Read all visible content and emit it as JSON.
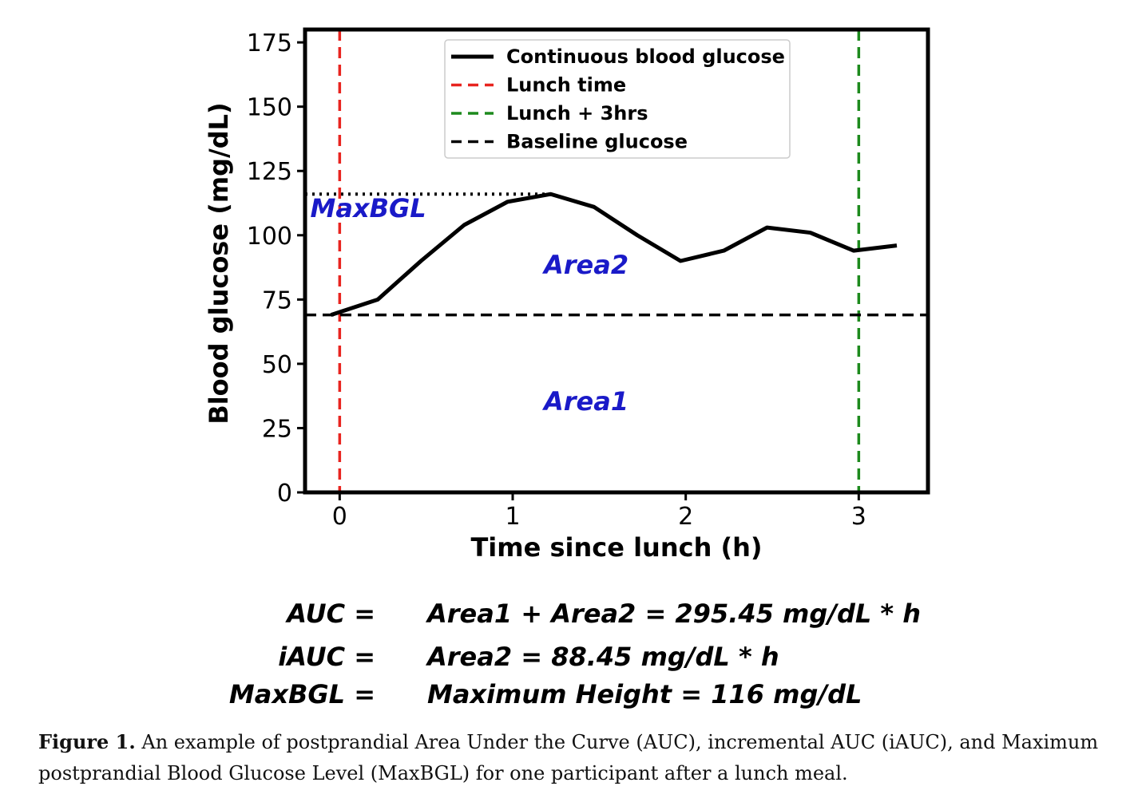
{
  "chart_data": {
    "type": "line",
    "xlabel": "Time since lunch (h)",
    "ylabel": "Blood glucose (mg/dL)",
    "xlim": [
      -0.2,
      3.4
    ],
    "ylim": [
      0,
      180
    ],
    "xticks": [
      "0",
      "1",
      "2",
      "3"
    ],
    "yticks": [
      "0",
      "25",
      "50",
      "75",
      "100",
      "125",
      "150",
      "175"
    ],
    "grid": false,
    "legend_position": "top-center",
    "series": [
      {
        "name": "Continuous blood glucose",
        "style": "solid",
        "color": "#000000",
        "x": [
          -0.05,
          0.22,
          0.47,
          0.72,
          0.97,
          1.22,
          1.47,
          1.72,
          1.97,
          2.22,
          2.47,
          2.72,
          2.97,
          3.22
        ],
        "y": [
          69,
          75,
          90,
          104,
          113,
          116,
          111,
          100,
          90,
          94,
          103,
          101,
          94,
          96
        ]
      }
    ],
    "reference_lines": [
      {
        "name": "Lunch time",
        "orientation": "vertical",
        "value": 0,
        "color": "#e8241f",
        "style": "dashed"
      },
      {
        "name": "Lunch + 3hrs",
        "orientation": "vertical",
        "value": 3,
        "color": "#1d8a1d",
        "style": "dashed"
      },
      {
        "name": "Baseline glucose",
        "orientation": "horizontal",
        "value": 69,
        "color": "#000000",
        "style": "dashed"
      }
    ],
    "max_line": {
      "value": 116,
      "x_from": -0.2,
      "x_to": 1.22,
      "style": "dotted"
    },
    "annotations": [
      {
        "text": "MaxBGL",
        "x": -0.17,
        "y": 107,
        "color": "#1a1ac8"
      },
      {
        "text": "Area2",
        "x": 1.18,
        "y": 85,
        "color": "#1a1ac8"
      },
      {
        "text": "Area1",
        "x": 1.18,
        "y": 32,
        "color": "#1a1ac8"
      }
    ]
  },
  "equations": [
    {
      "label": "AUC =",
      "expr": "Area1 + Area2  = 295.45 mg/dL * h"
    },
    {
      "label": "iAUC =",
      "expr": "Area2 = 88.45 mg/dL * h"
    },
    {
      "label": "MaxBGL =",
      "expr": "Maximum Height = 116 mg/dL"
    }
  ],
  "caption": {
    "label": "Figure 1.",
    "text": "An example of postprandial Area Under the Curve (AUC), incremental AUC (iAUC), and Maximum postprandial Blood Glucose Level (MaxBGL) for one participant after a lunch meal."
  }
}
